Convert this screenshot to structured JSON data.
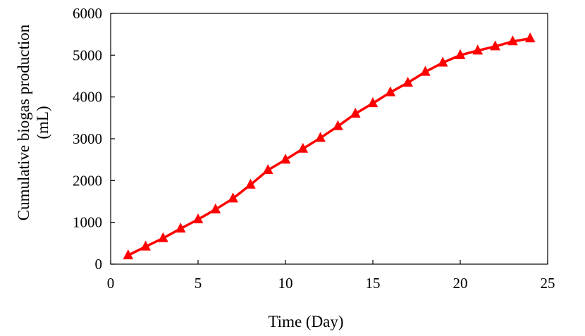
{
  "chart_data": {
    "type": "line",
    "title": "",
    "xlabel": "Time (Day)",
    "ylabel_lines": [
      "Cumulative biogas production",
      "(mL)"
    ],
    "xlim": [
      0,
      25
    ],
    "ylim": [
      0,
      6000
    ],
    "xticks": [
      0,
      5,
      10,
      15,
      20,
      25
    ],
    "yticks": [
      0,
      1000,
      2000,
      3000,
      4000,
      5000,
      6000
    ],
    "grid": false,
    "legend": "none",
    "series": [
      {
        "color": "#ff0000",
        "marker": "triangle",
        "x": [
          1,
          2,
          3,
          4,
          5,
          6,
          7,
          8,
          9,
          10,
          11,
          12,
          13,
          14,
          15,
          16,
          17,
          18,
          19,
          20,
          21,
          22,
          23,
          24
        ],
        "y": [
          210,
          420,
          620,
          850,
          1070,
          1310,
          1570,
          1900,
          2250,
          2500,
          2760,
          3020,
          3300,
          3600,
          3850,
          4110,
          4340,
          4600,
          4820,
          5000,
          5110,
          5210,
          5330,
          5400
        ]
      }
    ]
  }
}
